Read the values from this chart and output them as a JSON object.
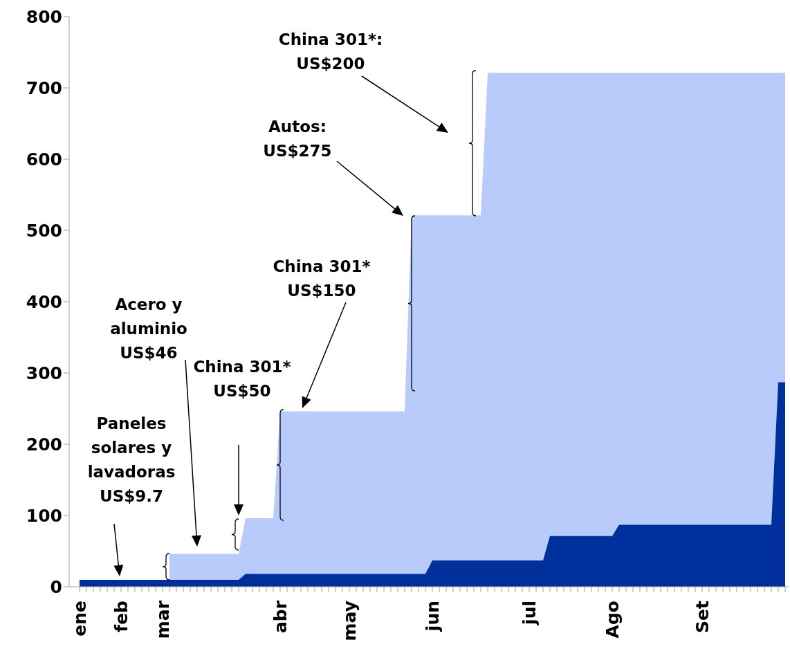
{
  "chart_data": {
    "type": "area",
    "categories": [
      "ene",
      null,
      null,
      null,
      null,
      null,
      "feb",
      null,
      null,
      null,
      null,
      null,
      "mar",
      null,
      null,
      null,
      null,
      null,
      null,
      null,
      null,
      null,
      null,
      null,
      null,
      null,
      null,
      null,
      null,
      "abr",
      null,
      null,
      null,
      null,
      null,
      null,
      null,
      null,
      null,
      "may",
      null,
      null,
      null,
      null,
      null,
      null,
      null,
      null,
      null,
      null,
      null,
      "jun",
      null,
      null,
      null,
      null,
      null,
      null,
      null,
      null,
      null,
      null,
      null,
      null,
      null,
      "jul",
      null,
      null,
      null,
      null,
      null,
      null,
      null,
      null,
      null,
      null,
      null,
      "Ago",
      null,
      null,
      null,
      null,
      null,
      null,
      null,
      null,
      null,
      null,
      null,
      null,
      "Set",
      null,
      null,
      null,
      null,
      null,
      null,
      null,
      null,
      null,
      null,
      null,
      null
    ],
    "series": [
      {
        "color": "#b8cbfb",
        "values": [
          null,
          null,
          null,
          null,
          null,
          null,
          null,
          null,
          null,
          null,
          null,
          null,
          null,
          46,
          46,
          46,
          46,
          46,
          46,
          46,
          46,
          46,
          46,
          46,
          96,
          96,
          96,
          96,
          96,
          246,
          246,
          246,
          246,
          246,
          246,
          246,
          246,
          246,
          246,
          246,
          246,
          246,
          246,
          246,
          246,
          246,
          246,
          246,
          521,
          521,
          521,
          521,
          521,
          521,
          521,
          521,
          521,
          521,
          521,
          721,
          721,
          721,
          721,
          721,
          721,
          721,
          721,
          721,
          721,
          721,
          721,
          721,
          721,
          721,
          721,
          721,
          721,
          721,
          721,
          721,
          721,
          721,
          721,
          721,
          721,
          721,
          721,
          721,
          721,
          721,
          721,
          721,
          721,
          721,
          721,
          721,
          721,
          721,
          721,
          721,
          721,
          721,
          721
        ]
      },
      {
        "color": "#00309c",
        "values": [
          9.7,
          9.7,
          9.7,
          9.7,
          9.7,
          9.7,
          9.7,
          9.7,
          9.7,
          9.7,
          9.7,
          9.7,
          9.7,
          9.7,
          9.7,
          9.7,
          9.7,
          9.7,
          9.7,
          9.7,
          9.7,
          9.7,
          9.7,
          9.7,
          18,
          18,
          18,
          18,
          18,
          18,
          18,
          18,
          18,
          18,
          18,
          18,
          18,
          18,
          18,
          18,
          18,
          18,
          18,
          18,
          18,
          18,
          18,
          18,
          18,
          18,
          18,
          37,
          37,
          37,
          37,
          37,
          37,
          37,
          37,
          37,
          37,
          37,
          37,
          37,
          37,
          37,
          37,
          37,
          71,
          71,
          71,
          71,
          71,
          71,
          71,
          71,
          71,
          71,
          87,
          87,
          87,
          87,
          87,
          87,
          87,
          87,
          87,
          87,
          87,
          87,
          87,
          87,
          87,
          87,
          87,
          87,
          87,
          87,
          87,
          87,
          87,
          287,
          287
        ]
      }
    ],
    "ylim": [
      0,
      800
    ],
    "yticks": [
      0,
      100,
      200,
      300,
      400,
      500,
      600,
      700,
      800
    ],
    "grid": false,
    "legend": false,
    "annotations": [
      "Paneles\nsolares y\nlavadoras\nUS$9.7",
      "Acero y\naluminio\nUS$46",
      "China 301*\nUS$50",
      "China 301*\nUS$150",
      "Autos:\nUS$275",
      "China 301*:\nUS$200"
    ]
  }
}
